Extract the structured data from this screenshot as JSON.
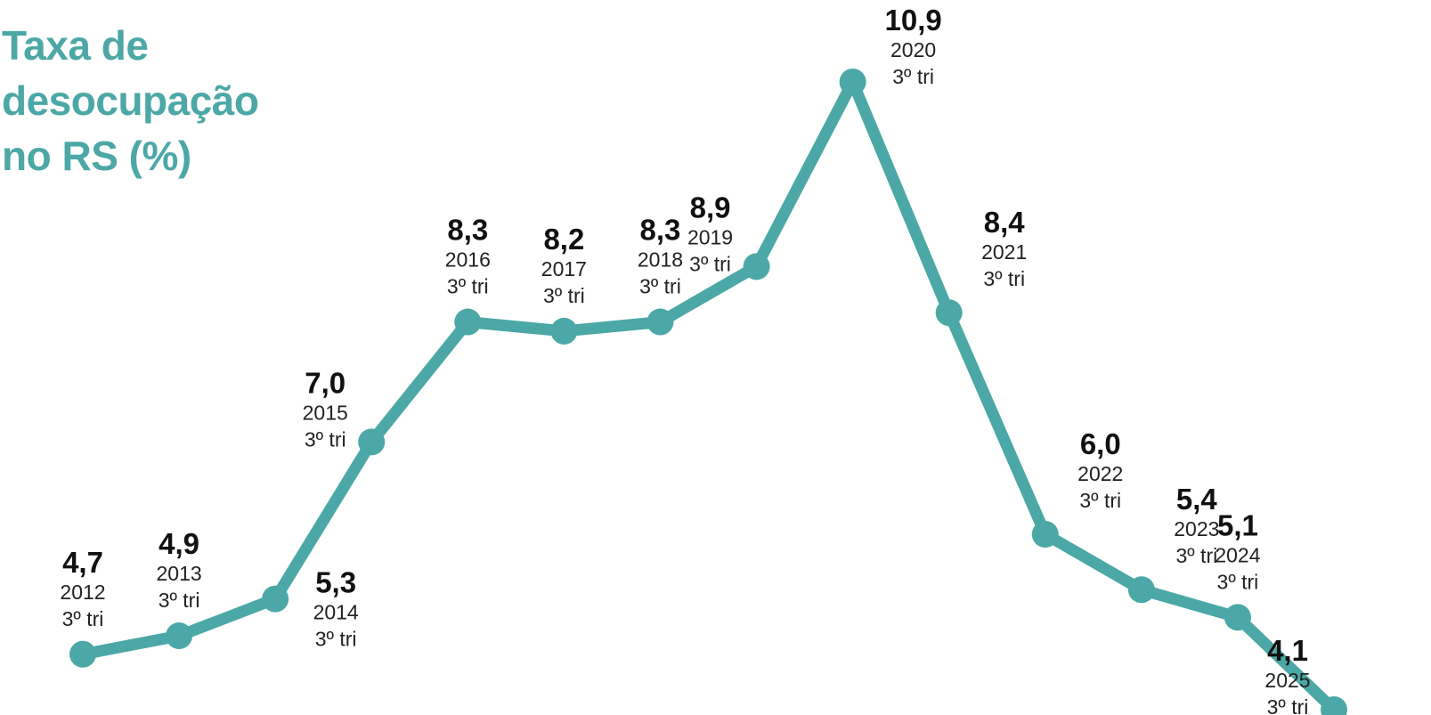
{
  "title_lines": [
    "Taxa de",
    "desocupação",
    "no RS (%)"
  ],
  "colors": {
    "line": "#4ba8a6",
    "title": "#4ba8a6",
    "value_text": "#111111",
    "label_text": "#222222"
  },
  "chart_data": {
    "type": "line",
    "title": "Taxa de desocupação no RS (%)",
    "xlabel": "",
    "ylabel": "",
    "ylim": [
      4.1,
      10.9
    ],
    "grid": false,
    "legend": "none",
    "quarter_label": "3º tri",
    "categories": [
      "2012",
      "2013",
      "2014",
      "2015",
      "2016",
      "2017",
      "2018",
      "2019",
      "2020",
      "2021",
      "2022",
      "2023",
      "2024",
      "2025"
    ],
    "values": [
      4.7,
      4.9,
      5.3,
      7.0,
      8.3,
      8.2,
      8.3,
      8.9,
      10.9,
      8.4,
      6.0,
      5.4,
      5.1,
      4.1
    ],
    "value_labels": [
      "4,7",
      "4,9",
      "5,3",
      "7,0",
      "8,3",
      "8,2",
      "8,3",
      "8,9",
      "10,9",
      "8,4",
      "6,0",
      "5,4",
      "5,1",
      "4,1"
    ],
    "label_side": [
      "above",
      "above",
      "below",
      "above-left",
      "above",
      "above",
      "above",
      "above-left",
      "right",
      "above-right",
      "above-right",
      "above-right",
      "above",
      "above-left"
    ]
  }
}
